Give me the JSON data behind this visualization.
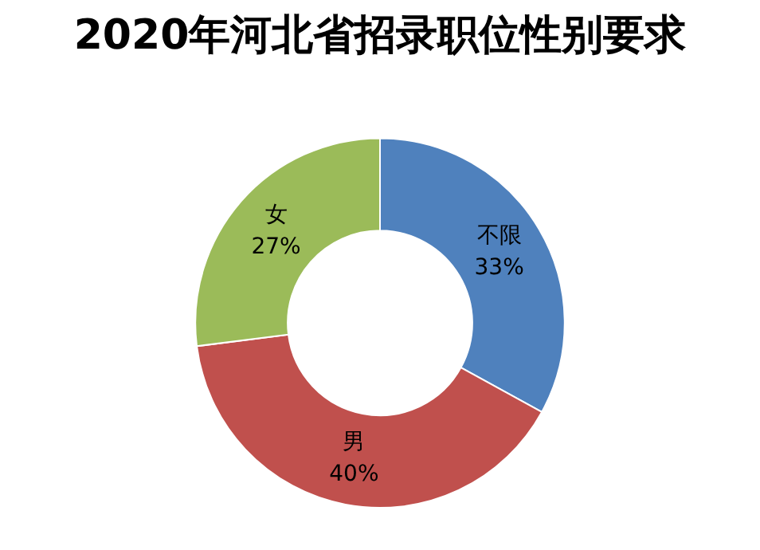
{
  "chart_data": {
    "type": "donut",
    "title": "2020年河北省招录职位性别要求",
    "categories": [
      "不限",
      "男",
      "女"
    ],
    "values": [
      33,
      40,
      27
    ],
    "value_labels": [
      "33%",
      "40%",
      "27%"
    ],
    "colors": [
      "#4f81bd",
      "#c0504d",
      "#9bbb59"
    ],
    "legend": false
  }
}
